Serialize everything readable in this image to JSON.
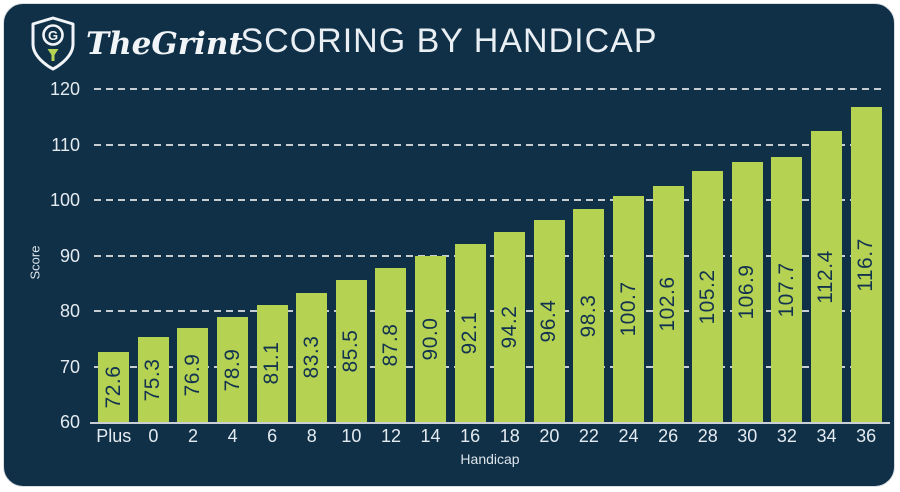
{
  "brand": {
    "name": "TheGrint",
    "logo_icon": "shield-golf-tee-icon",
    "logo_letter": "G"
  },
  "title": "SCORING BY HANDICAP",
  "chart_data": {
    "type": "bar",
    "title": "SCORING BY HANDICAP",
    "categories": [
      "Plus",
      "0",
      "2",
      "4",
      "6",
      "8",
      "10",
      "12",
      "14",
      "16",
      "18",
      "20",
      "22",
      "24",
      "26",
      "28",
      "30",
      "32",
      "34",
      "36"
    ],
    "values": [
      72.6,
      75.3,
      76.9,
      78.9,
      81.1,
      83.3,
      85.5,
      87.8,
      90.0,
      92.1,
      94.2,
      96.4,
      98.3,
      100.7,
      102.6,
      105.2,
      106.9,
      107.7,
      112.4,
      116.7
    ],
    "value_labels": [
      "72.6",
      "75.3",
      "76.9",
      "78.9",
      "81.1",
      "83.3",
      "85.5",
      "87.8",
      "90.0",
      "92.1",
      "94.2",
      "96.4",
      "98.3",
      "100.7",
      "102.6",
      "105.2",
      "106.9",
      "107.7",
      "112.4",
      "116.7"
    ],
    "xlabel": "Handicap",
    "ylabel": "Score",
    "ylim": [
      60,
      120
    ],
    "ytick_step": 10,
    "yticks": [
      "60",
      "70",
      "80",
      "90",
      "100",
      "110",
      "120"
    ],
    "grid": "dashed horizontal, on",
    "legend": "none",
    "bar_color": "#b6d253",
    "value_label_color": "#123350"
  },
  "colors": {
    "card_background": "#103048",
    "accent_green": "#b6d253",
    "text_light": "#e9eff3",
    "gridline": "#c6ced4"
  }
}
